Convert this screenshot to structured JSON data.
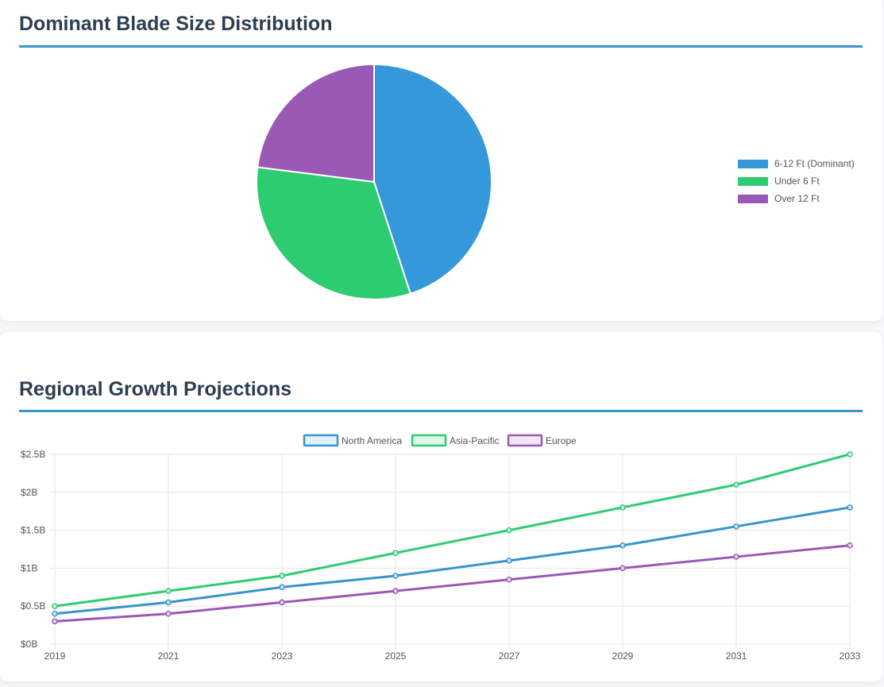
{
  "pie_section": {
    "title": "Dominant Blade Size Distribution"
  },
  "line_section": {
    "title": "Regional Growth Projections"
  },
  "chart_data": [
    {
      "type": "pie",
      "title": "",
      "legend_position": "right",
      "slices": [
        {
          "label": "6-12 Ft (Dominant)",
          "value": 45,
          "color": "#3498db"
        },
        {
          "label": "Under 6 Ft",
          "value": 32,
          "color": "#2ecc71"
        },
        {
          "label": "Over 12 Ft",
          "value": 23,
          "color": "#9b59b6"
        }
      ]
    },
    {
      "type": "line",
      "title": "",
      "xlabel": "",
      "ylabel": "",
      "legend_position": "top",
      "grid": true,
      "x": [
        2019,
        2021,
        2023,
        2025,
        2027,
        2029,
        2031,
        2033
      ],
      "ylim": [
        0,
        2.5
      ],
      "y_ticks": [
        {
          "value": 0,
          "label": "$0B"
        },
        {
          "value": 0.5,
          "label": "$0.5B"
        },
        {
          "value": 1,
          "label": "$1B"
        },
        {
          "value": 1.5,
          "label": "$1.5B"
        },
        {
          "value": 2,
          "label": "$2B"
        },
        {
          "value": 2.5,
          "label": "$2.5B"
        }
      ],
      "series": [
        {
          "name": "North America",
          "color": "#3a94c9",
          "values": [
            0.4,
            0.55,
            0.75,
            0.9,
            1.1,
            1.3,
            1.55,
            1.8
          ]
        },
        {
          "name": "Asia-Pacific",
          "color": "#2ecc71",
          "values": [
            0.5,
            0.7,
            0.9,
            1.2,
            1.5,
            1.8,
            2.1,
            2.5
          ]
        },
        {
          "name": "Europe",
          "color": "#9b59b6",
          "values": [
            0.3,
            0.4,
            0.55,
            0.7,
            0.85,
            1.0,
            1.15,
            1.3
          ]
        }
      ]
    }
  ]
}
